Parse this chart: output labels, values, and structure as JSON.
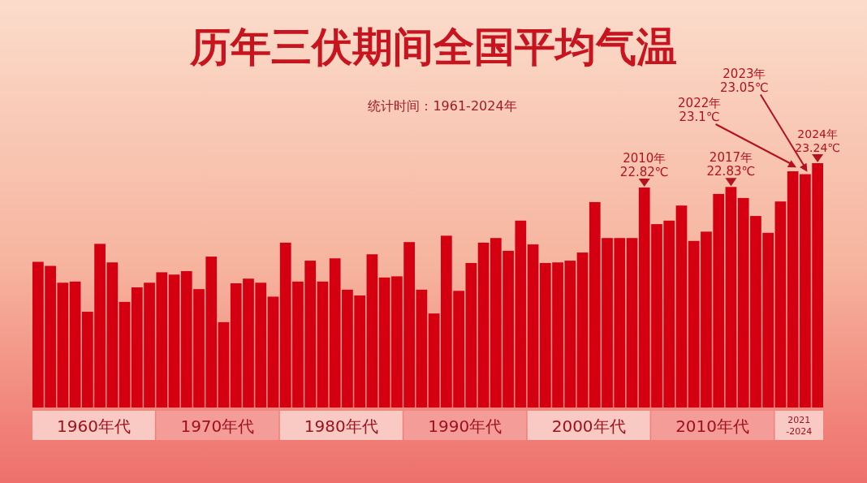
{
  "chart_data": {
    "type": "bar",
    "title": "历年三伏期间全国平均气温",
    "subtitle": "统计时间：1961-2024年",
    "ylim": [
      19.03,
      23.24
    ],
    "tick_labels": false,
    "color": "#d40012",
    "categories": [
      null,
      null,
      null,
      null,
      null,
      null,
      null,
      null,
      null,
      null,
      null,
      null,
      null,
      null,
      null,
      null,
      null,
      null,
      null,
      null,
      null,
      null,
      null,
      null,
      null,
      null,
      null,
      null,
      null,
      null,
      null,
      null,
      null,
      null,
      null,
      null,
      null,
      null,
      null,
      null,
      null,
      null,
      null,
      null,
      null,
      null,
      null,
      null,
      null,
      null,
      null,
      null,
      null,
      null,
      null,
      null,
      null,
      null,
      null,
      null,
      null,
      null,
      null,
      null
    ],
    "values": [
      21.54,
      21.47,
      21.18,
      21.2,
      20.68,
      21.85,
      21.53,
      20.85,
      21.1,
      21.18,
      21.36,
      21.32,
      21.38,
      21.07,
      21.63,
      20.5,
      21.17,
      21.25,
      21.18,
      20.94,
      21.87,
      21.2,
      21.56,
      21.2,
      21.6,
      21.06,
      20.96,
      21.67,
      21.27,
      21.29,
      21.88,
      21.06,
      20.65,
      21.99,
      21.04,
      21.52,
      21.87,
      21.95,
      21.73,
      22.25,
      21.84,
      21.52,
      21.53,
      21.56,
      21.7,
      22.57,
      21.95,
      21.95,
      21.95,
      22.82,
      22.19,
      22.25,
      22.51,
      21.9,
      22.06,
      22.71,
      22.83,
      22.64,
      22.33,
      22.04,
      22.58,
      23.1,
      23.05,
      23.24
    ],
    "value_labels": [
      null,
      null,
      null,
      null,
      null,
      null,
      null,
      null,
      null,
      null,
      null,
      null,
      null,
      null,
      null,
      null,
      null,
      null,
      null,
      null,
      null,
      null,
      null,
      null,
      null,
      null,
      null,
      null,
      null,
      null,
      null,
      null,
      null,
      null,
      null,
      null,
      null,
      null,
      null,
      null,
      null,
      null,
      null,
      null,
      null,
      null,
      null,
      null,
      null,
      "2010年\n22.82℃",
      null,
      null,
      null,
      null,
      null,
      null,
      "2017年\n22.83℃",
      null,
      null,
      null,
      null,
      "2022年\n23.1℃",
      "2023年\n23.05℃",
      "2024年\n23.24℃"
    ],
    "annotations": [
      "1960年代",
      "1970年代",
      "1980年代",
      "1990年代",
      "2000年代",
      "2010年代",
      "2021\n-2024"
    ]
  }
}
